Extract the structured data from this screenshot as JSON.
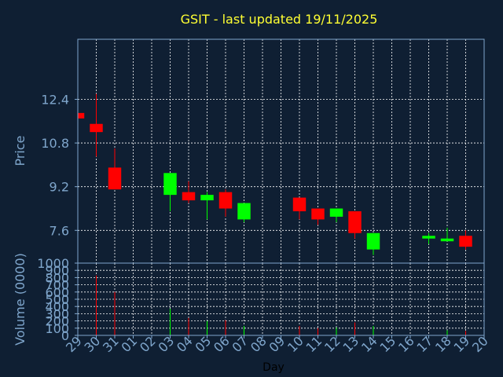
{
  "chart_data": {
    "type": "candlestick",
    "title": "GSIT - last updated 19/11/2025",
    "price_ylabel": "Price",
    "volume_ylabel": "Volume (0000)",
    "xlabel": "Day",
    "price_ylim": [
      6.4,
      14.6
    ],
    "price_yticks": [
      "7.6",
      "9.2",
      "10.8",
      "12.4"
    ],
    "volume_ylim": [
      0,
      1000
    ],
    "volume_yticks": [
      "0",
      "100",
      "200",
      "300",
      "400",
      "500",
      "600",
      "700",
      "800",
      "900",
      "1000"
    ],
    "x_ticks": [
      "29",
      "30",
      "31",
      "01",
      "02",
      "03",
      "04",
      "05",
      "06",
      "07",
      "08",
      "09",
      "10",
      "11",
      "12",
      "13",
      "14",
      "15",
      "16",
      "17",
      "18",
      "19",
      "20"
    ],
    "candles": [
      {
        "day": "29",
        "open": 11.9,
        "high": 11.9,
        "low": 11.7,
        "close": 11.7,
        "volume": 0
      },
      {
        "day": "30",
        "open": 11.5,
        "high": 12.6,
        "low": 10.3,
        "close": 11.2,
        "volume": 830
      },
      {
        "day": "31",
        "open": 9.9,
        "high": 10.6,
        "low": 9.1,
        "close": 9.1,
        "volume": 600
      },
      {
        "day": "03",
        "open": 8.9,
        "high": 9.7,
        "low": 8.3,
        "close": 9.7,
        "volume": 370
      },
      {
        "day": "04",
        "open": 9.0,
        "high": 9.4,
        "low": 8.6,
        "close": 8.7,
        "volume": 240
      },
      {
        "day": "05",
        "open": 8.7,
        "high": 9.0,
        "low": 8.0,
        "close": 8.9,
        "volume": 200
      },
      {
        "day": "06",
        "open": 9.0,
        "high": 9.1,
        "low": 8.1,
        "close": 8.4,
        "volume": 210
      },
      {
        "day": "07",
        "open": 8.0,
        "high": 8.6,
        "low": 7.9,
        "close": 8.6,
        "volume": 130
      },
      {
        "day": "10",
        "open": 8.8,
        "high": 8.8,
        "low": 8.0,
        "close": 8.3,
        "volume": 130
      },
      {
        "day": "11",
        "open": 8.4,
        "high": 8.4,
        "low": 7.8,
        "close": 8.0,
        "volume": 100
      },
      {
        "day": "12",
        "open": 8.1,
        "high": 8.4,
        "low": 7.9,
        "close": 8.4,
        "volume": 110
      },
      {
        "day": "13",
        "open": 8.3,
        "high": 8.3,
        "low": 7.3,
        "close": 7.5,
        "volume": 180
      },
      {
        "day": "14",
        "open": 6.9,
        "high": 7.5,
        "low": 6.7,
        "close": 7.5,
        "volume": 130
      },
      {
        "day": "17",
        "open": 7.3,
        "high": 7.5,
        "low": 7.1,
        "close": 7.4,
        "volume": 0
      },
      {
        "day": "18",
        "open": 7.2,
        "high": 7.7,
        "low": 7.2,
        "close": 7.3,
        "volume": 70
      },
      {
        "day": "19",
        "open": 7.4,
        "high": 7.6,
        "low": 6.9,
        "close": 7.0,
        "volume": 60
      }
    ],
    "colors": {
      "background": "#0f1f33",
      "axis": "#7fa6cc",
      "grid": "#ffffff",
      "up": "#00ff00",
      "down": "#ff0000",
      "title": "#ffff33",
      "xlabel": "#000000"
    }
  }
}
